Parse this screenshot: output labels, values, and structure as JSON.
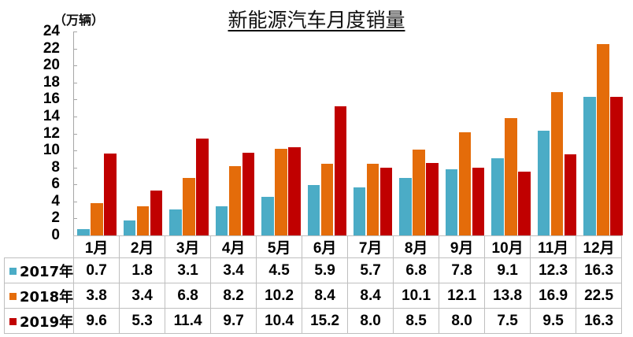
{
  "chart_data": {
    "type": "bar",
    "title": "新能源汽车月度销量",
    "ylabel": "（万辆）",
    "xlabel": "",
    "ylim": [
      0,
      24
    ],
    "yticks": [
      0,
      2,
      4,
      6,
      8,
      10,
      12,
      14,
      16,
      18,
      20,
      22,
      24
    ],
    "grid": false,
    "legend_position": "data-table-left",
    "categories": [
      "1月",
      "2月",
      "3月",
      "4月",
      "5月",
      "6月",
      "7月",
      "8月",
      "9月",
      "10月",
      "11月",
      "12月"
    ],
    "series": [
      {
        "name": "2017年",
        "color": "#4bacc6",
        "values": [
          0.7,
          1.8,
          3.1,
          3.4,
          4.5,
          5.9,
          5.7,
          6.8,
          7.8,
          9.1,
          12.3,
          16.3
        ]
      },
      {
        "name": "2018年",
        "color": "#e46c0a",
        "values": [
          3.8,
          3.4,
          6.8,
          8.2,
          10.2,
          8.4,
          8.4,
          10.1,
          12.1,
          13.8,
          16.9,
          22.5
        ]
      },
      {
        "name": "2019年",
        "color": "#c00000",
        "values": [
          9.6,
          5.3,
          11.4,
          9.7,
          10.4,
          15.2,
          8.0,
          8.5,
          8.0,
          7.5,
          9.5,
          16.3
        ]
      }
    ]
  },
  "table": {
    "value_strings": [
      [
        "0.7",
        "1.8",
        "3.1",
        "3.4",
        "4.5",
        "5.9",
        "5.7",
        "6.8",
        "7.8",
        "9.1",
        "12.3",
        "16.3"
      ],
      [
        "3.8",
        "3.4",
        "6.8",
        "8.2",
        "10.2",
        "8.4",
        "8.4",
        "10.1",
        "12.1",
        "13.8",
        "16.9",
        "22.5"
      ],
      [
        "9.6",
        "5.3",
        "11.4",
        "9.7",
        "10.4",
        "15.2",
        "8.0",
        "8.5",
        "8.0",
        "7.5",
        "9.5",
        "16.3"
      ]
    ]
  }
}
